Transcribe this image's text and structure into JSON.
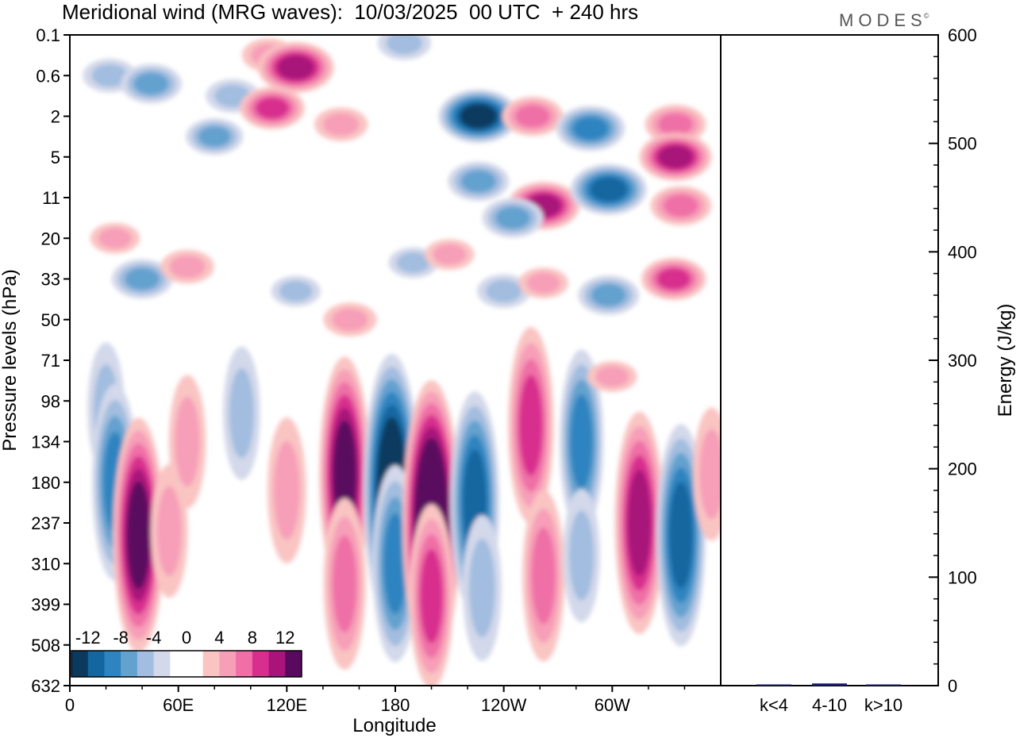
{
  "chart_data": {
    "type": "heatmap",
    "title": "Meridional wind (MRG waves):  10/03/2025  00 UTC  + 240 hrs",
    "brand": "MODES",
    "brand_mark": "©",
    "xlabel": "Longitude",
    "ylabel": "Pressure levels (hPa)",
    "x_ticks": [
      "0",
      "60E",
      "120E",
      "180",
      "120W",
      "60W"
    ],
    "x_tick_values": [
      0,
      60,
      120,
      180,
      240,
      300
    ],
    "xlim": [
      0,
      360
    ],
    "y_ticks": [
      "0.1",
      "0.6",
      "2",
      "5",
      "11",
      "20",
      "33",
      "50",
      "71",
      "98",
      "134",
      "180",
      "237",
      "310",
      "399",
      "508",
      "632"
    ],
    "colorbar": {
      "labels": [
        "-12",
        "-8",
        "-4",
        "0",
        "4",
        "8",
        "12"
      ],
      "colors": [
        "#0b3a5e",
        "#1366a0",
        "#2e84c0",
        "#63a1cf",
        "#a2bddf",
        "#d3d8ea",
        "#ffffff",
        "#ffffff",
        "#f9c4c2",
        "#f79fb8",
        "#ef6fa6",
        "#d82f8e",
        "#a8147a",
        "#5a0a5e"
      ]
    },
    "field_blobs": [
      {
        "lon": 22,
        "lev": 1.0,
        "value": -4
      },
      {
        "lon": 45,
        "lev": 1.2,
        "value": -6
      },
      {
        "lon": 80,
        "lev": 2.5,
        "value": -5
      },
      {
        "lon": 90,
        "lev": 1.5,
        "value": -4
      },
      {
        "lon": 110,
        "lev": 0.5,
        "value": 4
      },
      {
        "lon": 125,
        "lev": 0.8,
        "value": 10
      },
      {
        "lon": 112,
        "lev": 1.8,
        "value": 7
      },
      {
        "lon": 150,
        "lev": 2.2,
        "value": 4
      },
      {
        "lon": 185,
        "lev": 0.2,
        "value": -4
      },
      {
        "lon": 226,
        "lev": 2.0,
        "value": -11
      },
      {
        "lon": 226,
        "lev": 3.6,
        "value": -6
      },
      {
        "lon": 256,
        "lev": 2.0,
        "value": 6
      },
      {
        "lon": 262,
        "lev": 4.2,
        "value": 9
      },
      {
        "lon": 288,
        "lev": 2.3,
        "value": -8
      },
      {
        "lon": 298,
        "lev": 3.8,
        "value": -10
      },
      {
        "lon": 335,
        "lev": 2.2,
        "value": 6
      },
      {
        "lon": 335,
        "lev": 3.0,
        "value": 9
      },
      {
        "lon": 338,
        "lev": 4.2,
        "value": 6
      },
      {
        "lon": 245,
        "lev": 4.5,
        "value": -6
      },
      {
        "lon": 25,
        "lev": 5.0,
        "value": 3
      },
      {
        "lon": 40,
        "lev": 6.0,
        "value": -6
      },
      {
        "lon": 65,
        "lev": 5.7,
        "value": 4
      },
      {
        "lon": 125,
        "lev": 6.3,
        "value": -3
      },
      {
        "lon": 155,
        "lev": 7.0,
        "value": 4
      },
      {
        "lon": 190,
        "lev": 5.6,
        "value": -3
      },
      {
        "lon": 210,
        "lev": 5.4,
        "value": 3
      },
      {
        "lon": 240,
        "lev": 6.3,
        "value": -4
      },
      {
        "lon": 262,
        "lev": 6.1,
        "value": 3
      },
      {
        "lon": 298,
        "lev": 6.4,
        "value": -6
      },
      {
        "lon": 334,
        "lev": 6.0,
        "value": 7
      },
      {
        "lon": 20,
        "lev": 9.2,
        "value": -3
      },
      {
        "lon": 95,
        "lev": 9.3,
        "value": -3
      },
      {
        "lon": 25,
        "lev": 11.0,
        "value": -8
      },
      {
        "lon": 38,
        "lev": 12.3,
        "value": 11
      },
      {
        "lon": 55,
        "lev": 12.2,
        "value": 3
      },
      {
        "lon": 65,
        "lev": 10.0,
        "value": 3
      },
      {
        "lon": 120,
        "lev": 11.2,
        "value": 4
      },
      {
        "lon": 152,
        "lev": 10.8,
        "value": 11
      },
      {
        "lon": 152,
        "lev": 13.5,
        "value": 6
      },
      {
        "lon": 178,
        "lev": 11.2,
        "value": -14
      },
      {
        "lon": 180,
        "lev": 13.0,
        "value": -8
      },
      {
        "lon": 200,
        "lev": 12.0,
        "value": 15
      },
      {
        "lon": 200,
        "lev": 13.8,
        "value": 7
      },
      {
        "lon": 224,
        "lev": 11.5,
        "value": -10
      },
      {
        "lon": 228,
        "lev": 13.6,
        "value": -4
      },
      {
        "lon": 255,
        "lev": 9.6,
        "value": 8
      },
      {
        "lon": 262,
        "lev": 13.3,
        "value": 6
      },
      {
        "lon": 283,
        "lev": 10.0,
        "value": -7
      },
      {
        "lon": 283,
        "lev": 12.8,
        "value": -3
      },
      {
        "lon": 315,
        "lev": 12.0,
        "value": 10
      },
      {
        "lon": 338,
        "lev": 12.3,
        "value": -10
      },
      {
        "lon": 355,
        "lev": 10.8,
        "value": 3
      },
      {
        "lon": 300,
        "lev": 8.4,
        "value": 3
      }
    ],
    "energy_panel": {
      "ylabel": "Energy (J/kg)",
      "ylim": [
        0,
        600
      ],
      "y_ticks": [
        "0",
        "100",
        "200",
        "300",
        "400",
        "500",
        "600"
      ],
      "y_tick_values": [
        0,
        100,
        200,
        300,
        400,
        500,
        600
      ],
      "categories": [
        "k<4",
        "4-10",
        "k>10"
      ],
      "values": [
        0,
        2,
        0
      ],
      "bar_color": "#1a1a6e"
    }
  }
}
